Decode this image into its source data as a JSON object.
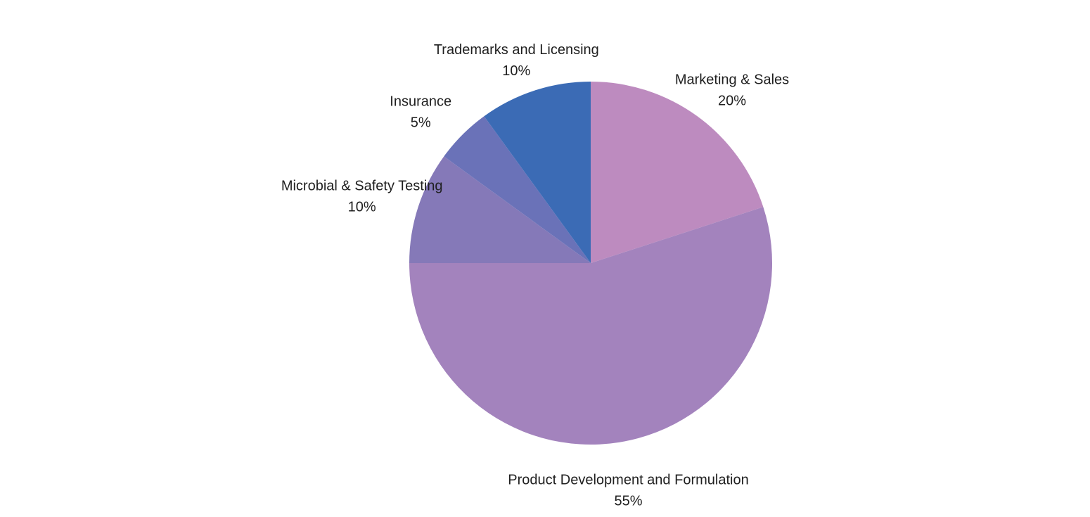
{
  "chart_data": {
    "type": "pie",
    "title": "",
    "start_angle_deg": 0,
    "direction": "clockwise",
    "legend": "none",
    "slices": [
      {
        "label": "Marketing & Sales",
        "value": 20,
        "value_label": "20%",
        "color": "#bd8bbf"
      },
      {
        "label": "Product Development and Formulation",
        "value": 55,
        "value_label": "55%",
        "color": "#a383bd"
      },
      {
        "label": "Microbial & Safety Testing",
        "value": 10,
        "value_label": "10%",
        "color": "#8579b8"
      },
      {
        "label": "Insurance",
        "value": 5,
        "value_label": "5%",
        "color": "#6a72b8"
      },
      {
        "label": "Trademarks and Licensing",
        "value": 10,
        "value_label": "10%",
        "color": "#3b6bb5"
      }
    ]
  }
}
